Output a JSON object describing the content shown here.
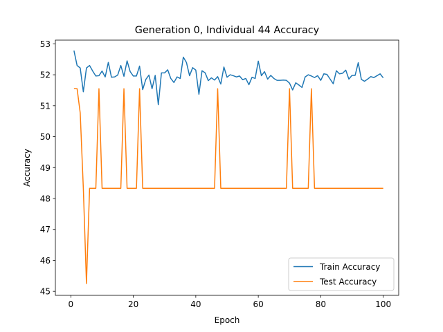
{
  "chart_data": {
    "type": "line",
    "title": "Generation 0, Individual 44 Accuracy",
    "xlabel": "Epoch",
    "ylabel": "Accuracy",
    "xlim": [
      -4.95,
      104.95
    ],
    "ylim": [
      44.87,
      53.12
    ],
    "xticks": [
      0,
      20,
      40,
      60,
      80,
      100
    ],
    "yticks": [
      45,
      46,
      47,
      48,
      49,
      50,
      51,
      52,
      53
    ],
    "grid": false,
    "legend_position": "lower-right",
    "series": [
      {
        "name": "Train Accuracy",
        "color": "#1f77b4",
        "x": [
          1,
          2,
          3,
          4,
          5,
          6,
          7,
          8,
          9,
          10,
          11,
          12,
          13,
          14,
          15,
          16,
          17,
          18,
          19,
          20,
          21,
          22,
          23,
          24,
          25,
          26,
          27,
          28,
          29,
          30,
          31,
          32,
          33,
          34,
          35,
          36,
          37,
          38,
          39,
          40,
          41,
          42,
          43,
          44,
          45,
          46,
          47,
          48,
          49,
          50,
          51,
          52,
          53,
          54,
          55,
          56,
          57,
          58,
          59,
          60,
          61,
          62,
          63,
          64,
          65,
          66,
          67,
          68,
          69,
          70,
          71,
          72,
          73,
          74,
          75,
          76,
          77,
          78,
          79,
          80,
          81,
          82,
          83,
          84,
          85,
          86,
          87,
          88,
          89,
          90,
          91,
          92,
          93,
          94,
          95,
          96,
          97,
          98,
          99,
          100
        ],
        "values": [
          52.78,
          52.3,
          52.22,
          51.45,
          52.22,
          52.3,
          52.12,
          51.96,
          51.97,
          52.12,
          51.93,
          52.4,
          51.92,
          51.93,
          51.99,
          52.3,
          51.95,
          52.45,
          52.1,
          51.96,
          51.96,
          52.28,
          51.52,
          51.85,
          51.99,
          51.55,
          51.98,
          51.03,
          52.06,
          52.06,
          52.16,
          51.88,
          51.75,
          51.93,
          51.88,
          52.57,
          52.4,
          51.97,
          52.23,
          52.15,
          51.37,
          52.13,
          52.06,
          51.81,
          51.9,
          51.83,
          51.94,
          51.7,
          52.25,
          51.92,
          52.0,
          51.97,
          51.93,
          51.96,
          51.84,
          51.88,
          51.68,
          51.92,
          51.88,
          52.44,
          51.97,
          52.1,
          51.86,
          51.98,
          51.88,
          51.82,
          51.82,
          51.83,
          51.82,
          51.73,
          51.51,
          51.74,
          51.67,
          51.59,
          51.93,
          52.0,
          51.96,
          51.91,
          51.97,
          51.82,
          52.03,
          52.01,
          51.86,
          51.71,
          52.13,
          52.03,
          52.05,
          52.15,
          51.86,
          51.98,
          51.98,
          52.39,
          51.85,
          51.79,
          51.86,
          51.94,
          51.91,
          51.97,
          52.03,
          51.9
        ]
      },
      {
        "name": "Test Accuracy",
        "color": "#ff7f0e",
        "x": [
          1,
          2,
          3,
          4,
          5,
          6,
          7,
          8,
          9,
          10,
          11,
          12,
          13,
          14,
          15,
          16,
          17,
          18,
          19,
          20,
          21,
          22,
          23,
          24,
          25,
          26,
          27,
          28,
          29,
          30,
          31,
          32,
          33,
          34,
          35,
          36,
          37,
          38,
          39,
          40,
          41,
          42,
          43,
          44,
          45,
          46,
          47,
          48,
          49,
          50,
          51,
          52,
          53,
          54,
          55,
          56,
          57,
          58,
          59,
          60,
          61,
          62,
          63,
          64,
          65,
          66,
          67,
          68,
          69,
          70,
          71,
          72,
          73,
          74,
          75,
          76,
          77,
          78,
          79,
          80,
          81,
          82,
          83,
          84,
          85,
          86,
          87,
          88,
          89,
          90,
          91,
          92,
          93,
          94,
          95,
          96,
          97,
          98,
          99,
          100
        ],
        "values": [
          51.55,
          51.55,
          50.77,
          48.33,
          45.25,
          48.33,
          48.33,
          48.33,
          51.55,
          48.33,
          48.33,
          48.33,
          48.33,
          48.33,
          48.33,
          48.33,
          51.55,
          48.33,
          48.33,
          48.33,
          48.33,
          51.55,
          48.33,
          48.33,
          48.33,
          48.33,
          48.33,
          48.33,
          48.33,
          48.33,
          48.33,
          48.33,
          48.33,
          48.33,
          48.33,
          48.33,
          48.33,
          48.33,
          48.33,
          48.33,
          48.33,
          48.33,
          48.33,
          48.33,
          48.33,
          48.33,
          51.55,
          48.33,
          48.33,
          48.33,
          48.33,
          48.33,
          48.33,
          48.33,
          48.33,
          48.33,
          48.33,
          48.33,
          48.33,
          48.33,
          48.33,
          48.33,
          48.33,
          48.33,
          48.33,
          48.33,
          48.33,
          48.33,
          48.33,
          51.55,
          48.33,
          48.33,
          48.33,
          48.33,
          48.33,
          48.33,
          51.55,
          48.33,
          48.33,
          48.33,
          48.33,
          48.33,
          48.33,
          48.33,
          48.33,
          48.33,
          48.33,
          48.33,
          48.33,
          48.33,
          48.33,
          48.33,
          48.33,
          48.33,
          48.33,
          48.33,
          48.33,
          48.33,
          48.33,
          48.33
        ]
      }
    ]
  }
}
